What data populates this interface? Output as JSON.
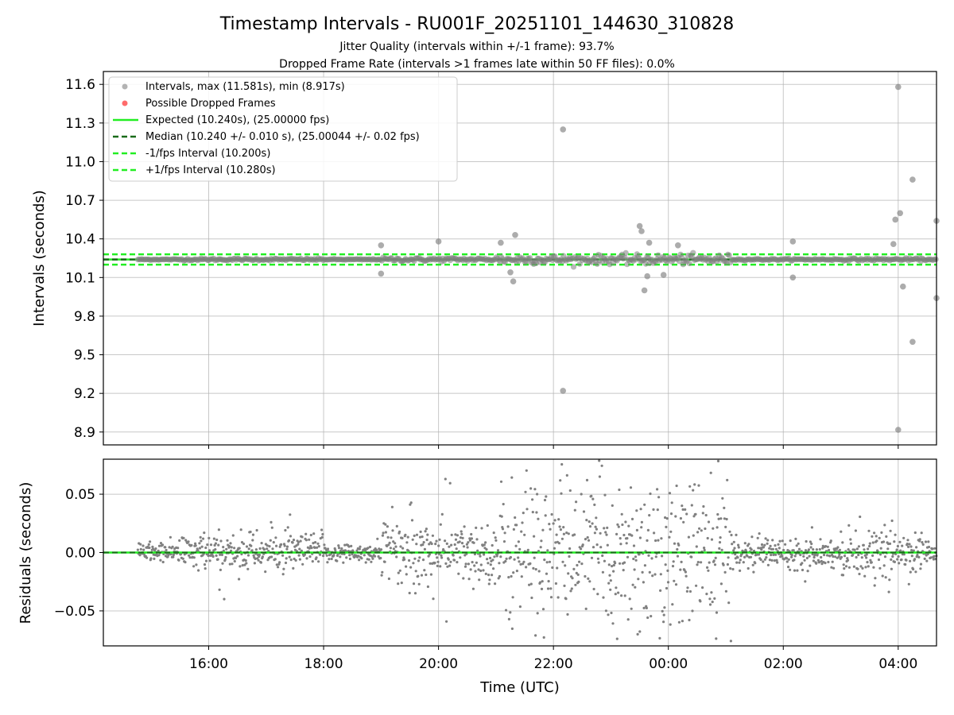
{
  "figure": {
    "title": "Timestamp Intervals - RU001F_20251101_144630_310828",
    "subtitle_1": "Jitter Quality (intervals within +/-1 frame): 93.7%",
    "subtitle_2": "Dropped Frame Rate (intervals >1 frames late within 50 FF files): 0.0%"
  },
  "colors": {
    "points": "#808080",
    "dropped": "#ff6b6b",
    "expected": "#22ee22",
    "median": "#1a6b1a",
    "grid": "#b0b0b0"
  },
  "chart_data": [
    {
      "id": "intervals",
      "type": "scatter",
      "xlabel": "",
      "ylabel": "Intervals (seconds)",
      "xlim": [
        "14:10",
        "04:40"
      ],
      "ylim": [
        8.8,
        11.7
      ],
      "yticks": [
        8.9,
        9.2,
        9.5,
        9.8,
        10.1,
        10.4,
        10.7,
        11.0,
        11.3,
        11.6
      ],
      "ytick_labels": [
        "8.9",
        "9.2",
        "9.5",
        "9.8",
        "10.1",
        "10.4",
        "10.7",
        "11.0",
        "11.3",
        "11.6"
      ],
      "xticks": [
        "16:00",
        "18:00",
        "20:00",
        "22:00",
        "00:00",
        "02:00",
        "04:00"
      ],
      "grid": true,
      "legend_position": "upper-left",
      "series": [
        {
          "name": "Intervals, max (11.581s), min (8.917s)",
          "kind": "points",
          "x_range": [
            "14:46",
            "04:40"
          ],
          "baseline": 10.24
        },
        {
          "name": "Possible Dropped Frames",
          "kind": "points",
          "x": [],
          "y": []
        }
      ],
      "reference_lines": [
        {
          "name": "Expected (10.240s), (25.00000 fps)",
          "y": 10.24,
          "style": "solid"
        },
        {
          "name": "Median (10.240 +/- 0.010 s), (25.00044 +/- 0.02 fps)",
          "y": 10.24,
          "style": "dashed"
        },
        {
          "name": "-1/fps Interval (10.200s)",
          "y": 10.2,
          "style": "dashed"
        },
        {
          "name": "+1/fps Interval (10.280s)",
          "y": 10.28,
          "style": "dashed"
        }
      ],
      "outliers": {
        "x": [
          "22:10",
          "22:10",
          "04:00",
          "04:00",
          "04:15",
          "04:15",
          "04:40",
          "04:40",
          "23:30",
          "23:32",
          "23:40",
          "23:35",
          "23:38",
          "21:20",
          "21:18",
          "21:15",
          "20:00",
          "19:00",
          "19:00",
          "02:10",
          "02:10",
          "03:55",
          "03:57",
          "04:02",
          "04:05",
          "21:05",
          "23:55",
          "00:10"
        ],
        "y": [
          11.25,
          9.22,
          11.58,
          8.917,
          10.86,
          9.6,
          10.54,
          9.94,
          10.5,
          10.46,
          10.37,
          10.0,
          10.11,
          10.43,
          10.07,
          10.14,
          10.38,
          10.35,
          10.13,
          10.38,
          10.1,
          10.36,
          10.55,
          10.6,
          10.03,
          10.37,
          10.12,
          10.35
        ]
      }
    },
    {
      "id": "residuals",
      "type": "scatter",
      "xlabel": "Time (UTC)",
      "ylabel": "Residuals (seconds)",
      "xlim": [
        "14:10",
        "04:40"
      ],
      "ylim": [
        -0.08,
        0.08
      ],
      "yticks": [
        -0.05,
        0.0,
        0.05
      ],
      "ytick_labels": [
        "−0.05",
        "0.00",
        "0.05"
      ],
      "xticks": [
        "16:00",
        "18:00",
        "20:00",
        "22:00",
        "00:00",
        "02:00",
        "04:00"
      ],
      "grid": true,
      "series": [
        {
          "name": "Residuals",
          "kind": "points",
          "x_range": [
            "14:46",
            "04:40"
          ],
          "baseline": 0.0
        }
      ],
      "reference_lines": [
        {
          "y": 0.0,
          "style": "solid"
        },
        {
          "y": 0.0,
          "style": "dashed"
        }
      ]
    }
  ]
}
